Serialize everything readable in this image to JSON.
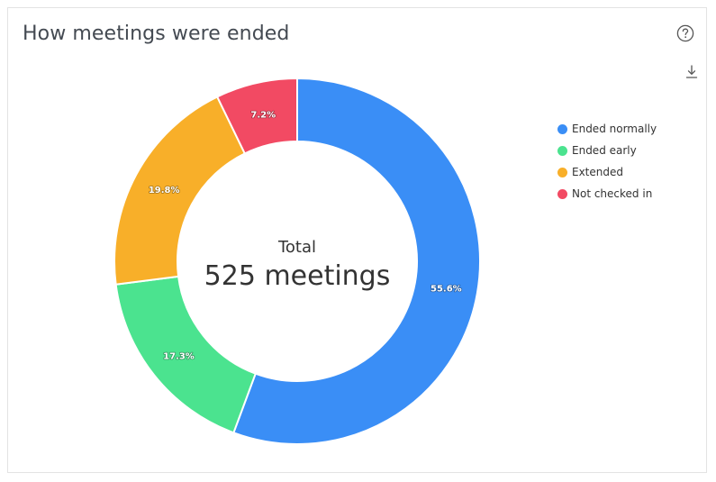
{
  "card": {
    "title": "How meetings were ended",
    "help_icon": "question-circle-icon",
    "download_icon": "download-icon"
  },
  "chart_data": {
    "type": "pie",
    "variant": "donut",
    "title": "How meetings were ended",
    "center_label": "Total",
    "center_value": "525 meetings",
    "legend_position": "right",
    "slices": [
      {
        "name": "Ended normally",
        "value": 55.6,
        "label": "55.6%",
        "color": "#3a8ef6"
      },
      {
        "name": "Ended early",
        "value": 17.3,
        "label": "17.3%",
        "color": "#4be38f"
      },
      {
        "name": "Extended",
        "value": 19.8,
        "label": "19.8%",
        "color": "#f8af29"
      },
      {
        "name": "Not checked in",
        "value": 7.2,
        "label": "7.2%",
        "color": "#f24a63"
      }
    ]
  }
}
